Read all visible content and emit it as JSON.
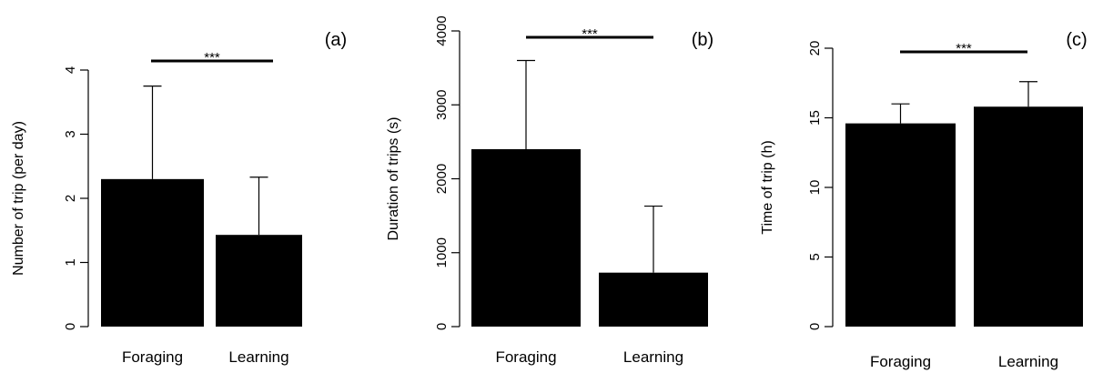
{
  "chart_data": [
    {
      "type": "bar",
      "panel_label": "(a)",
      "categories": [
        "Foraging",
        "Learning"
      ],
      "values": [
        2.3,
        1.43
      ],
      "error_upper": [
        3.75,
        2.33
      ],
      "ylabel": "Number of trip (per day)",
      "ylim": [
        0,
        4
      ],
      "yticks": [
        "0",
        "1",
        "2",
        "3",
        "4"
      ],
      "significance": "***",
      "color": "#000000"
    },
    {
      "type": "bar",
      "panel_label": "(b)",
      "categories": [
        "Foraging",
        "Learning"
      ],
      "values": [
        2400,
        730
      ],
      "error_upper": [
        3600,
        1630
      ],
      "ylabel": "Duration of trips (s)",
      "ylim": [
        0,
        4000
      ],
      "yticks": [
        "0",
        "1000",
        "2000",
        "3000",
        "4000"
      ],
      "significance": "***",
      "color": "#000000"
    },
    {
      "type": "bar",
      "panel_label": "(c)",
      "categories": [
        "Foraging",
        "Learning"
      ],
      "values": [
        14.6,
        15.8
      ],
      "error_upper": [
        16.0,
        17.6
      ],
      "ylabel": "Time of trip (h)",
      "ylim": [
        0,
        20
      ],
      "yticks": [
        "0",
        "5",
        "10",
        "15",
        "20"
      ],
      "significance": "***",
      "color": "#000000"
    }
  ]
}
